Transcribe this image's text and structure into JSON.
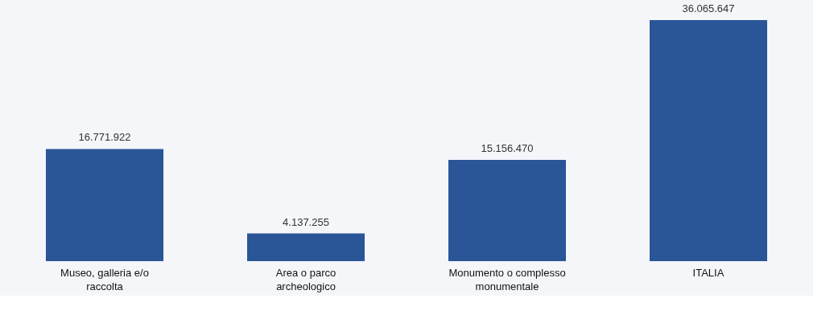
{
  "chart_data": {
    "type": "bar",
    "categories": [
      "Museo, galleria e/o raccolta",
      "Area o parco archeologico",
      "Monumento o complesso monumentale",
      "ITALIA"
    ],
    "values": [
      16771922,
      4137255,
      15156470,
      36065647
    ],
    "value_labels": [
      "16.771.922",
      "4.137.255",
      "15.156.470",
      "36.065.647"
    ],
    "color": "#2a5597"
  }
}
